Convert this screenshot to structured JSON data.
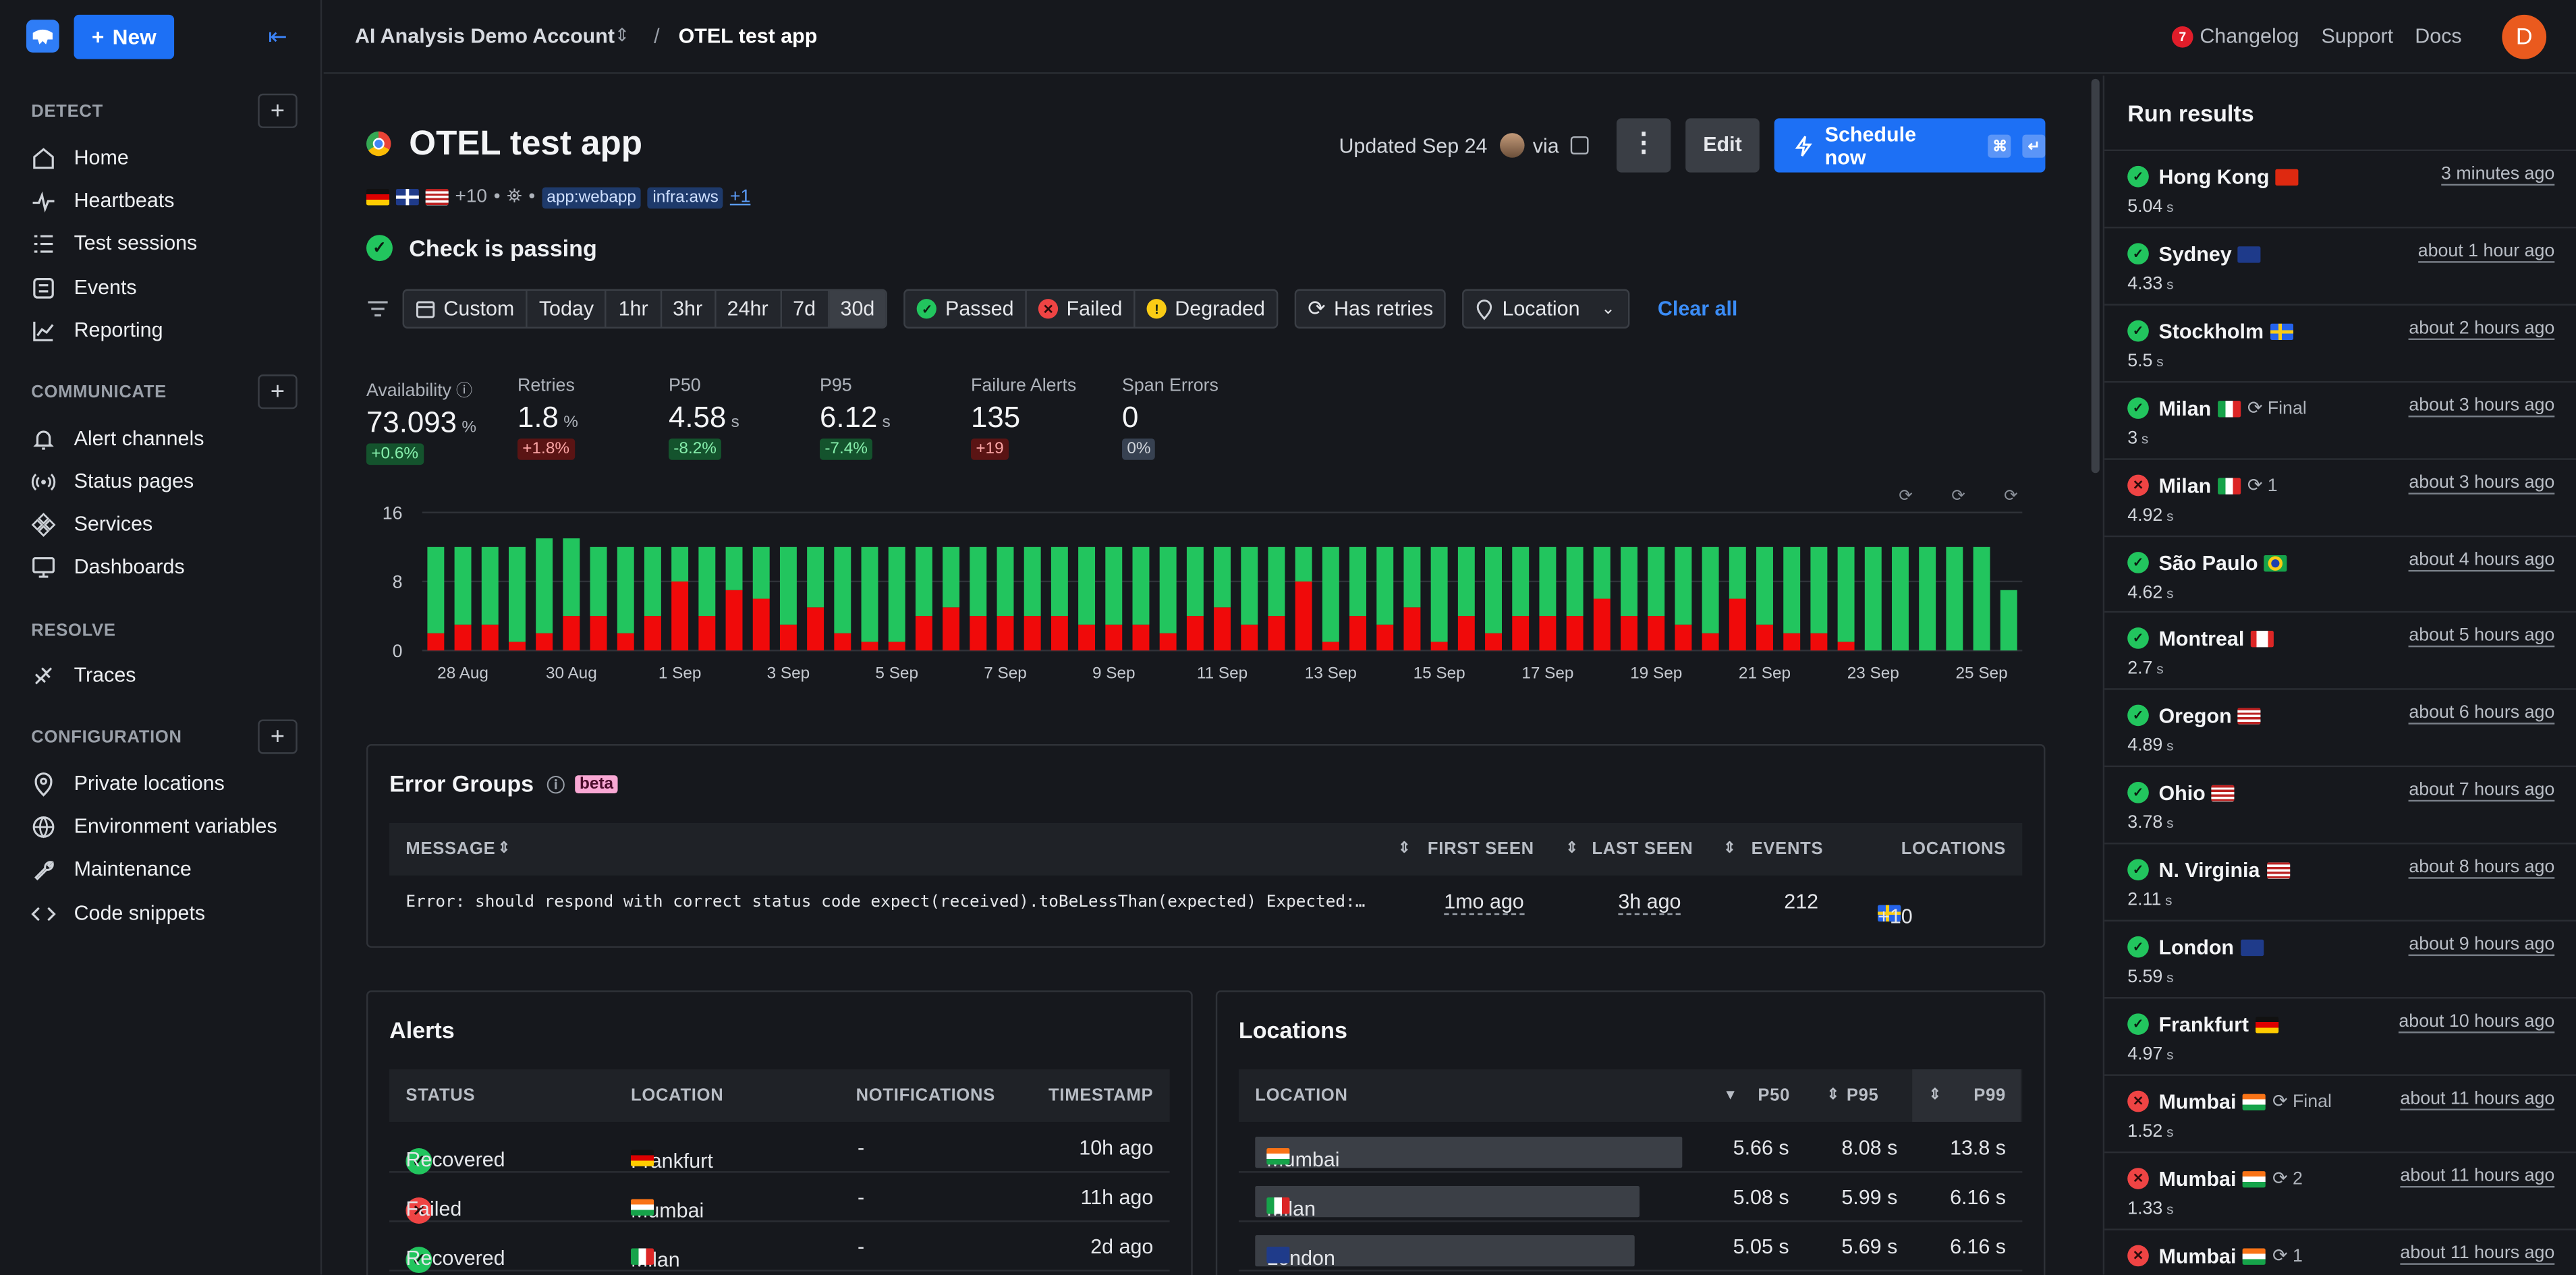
{
  "sidebar": {
    "new_label": "New",
    "sections": [
      {
        "title": "DETECT",
        "items": [
          "Home",
          "Heartbeats",
          "Test sessions",
          "Events",
          "Reporting"
        ]
      },
      {
        "title": "COMMUNICATE",
        "items": [
          "Alert channels",
          "Status pages",
          "Services",
          "Dashboards"
        ]
      },
      {
        "title": "RESOLVE",
        "items": [
          "Traces"
        ]
      },
      {
        "title": "CONFIGURATION",
        "items": [
          "Private locations",
          "Environment variables",
          "Maintenance",
          "Code snippets"
        ]
      }
    ]
  },
  "topbar": {
    "account": "AI Analysis Demo Account",
    "separator": "/",
    "page": "OTEL test app",
    "changelog_count": "7",
    "links": [
      "Changelog",
      "Support",
      "Docs"
    ],
    "avatar_initial": "D"
  },
  "check": {
    "title": "OTEL test app",
    "updated": "Updated Sep 24",
    "via": "via",
    "more_label": "⋮",
    "edit_label": "Edit",
    "schedule_label": "Schedule now",
    "kbd": [
      "⌘",
      "↵"
    ],
    "flags_more": "+10",
    "tags": [
      "app:webapp",
      "infra:aws"
    ],
    "tags_more": "+1",
    "status": "Check is passing"
  },
  "filters": {
    "ranges": [
      "Custom",
      "Today",
      "1hr",
      "3hr",
      "24hr",
      "7d",
      "30d"
    ],
    "active_range": "30d",
    "statuses": [
      "Passed",
      "Failed",
      "Degraded"
    ],
    "has_retries": "Has retries",
    "location": "Location",
    "clear_all": "Clear all"
  },
  "stats": [
    {
      "label": "Availability",
      "value": "73.093",
      "unit": "%",
      "delta": "+0.6%",
      "tone": "g"
    },
    {
      "label": "Retries",
      "value": "1.8",
      "unit": "%",
      "delta": "+1.8%",
      "tone": "r"
    },
    {
      "label": "P50",
      "value": "4.58",
      "unit": "s",
      "delta": "-8.2%",
      "tone": "g"
    },
    {
      "label": "P95",
      "value": "6.12",
      "unit": "s",
      "delta": "-7.4%",
      "tone": "g"
    },
    {
      "label": "Failure Alerts",
      "value": "135",
      "unit": "",
      "delta": "+19",
      "tone": "r"
    },
    {
      "label": "Span Errors",
      "value": "0",
      "unit": "",
      "delta": "0%",
      "tone": "n"
    }
  ],
  "chart_data": {
    "type": "bar",
    "stacked": true,
    "ylim": [
      0,
      16
    ],
    "y_ticks": [
      "16",
      "8",
      "0"
    ],
    "x_tick_labels": [
      "28 Aug",
      "30 Aug",
      "1 Sep",
      "3 Sep",
      "5 Sep",
      "7 Sep",
      "9 Sep",
      "11 Sep",
      "13 Sep",
      "15 Sep",
      "17 Sep",
      "19 Sep",
      "21 Sep",
      "23 Sep",
      "25 Sep"
    ],
    "colors": {
      "passed": "#22c55e",
      "failed": "#f00a0a"
    },
    "series": [
      {
        "name": "failed",
        "values": [
          2,
          3,
          3,
          1,
          2,
          4,
          4,
          2,
          4,
          8,
          4,
          7,
          6,
          3,
          5,
          2,
          1,
          1,
          4,
          5,
          4,
          4,
          4,
          4,
          3,
          3,
          3,
          2,
          4,
          5,
          3,
          4,
          8,
          1,
          4,
          3,
          5,
          1,
          4,
          2,
          4,
          4,
          4,
          6,
          4,
          4,
          3,
          2,
          6,
          3,
          2,
          2,
          1,
          0,
          0,
          0,
          0,
          0,
          0
        ]
      },
      {
        "name": "passed",
        "values": [
          10,
          9,
          9,
          11,
          11,
          9,
          8,
          10,
          8,
          4,
          8,
          5,
          6,
          9,
          7,
          10,
          11,
          11,
          8,
          7,
          8,
          8,
          8,
          8,
          9,
          9,
          9,
          10,
          8,
          7,
          9,
          8,
          4,
          11,
          8,
          9,
          7,
          11,
          8,
          10,
          8,
          8,
          8,
          6,
          8,
          8,
          9,
          10,
          6,
          9,
          10,
          10,
          11,
          12,
          12,
          12,
          12,
          12,
          7
        ]
      }
    ]
  },
  "error_groups": {
    "title": "Error Groups",
    "badge": "beta",
    "columns": [
      "MESSAGE",
      "FIRST SEEN",
      "LAST SEEN",
      "EVENTS",
      "LOCATIONS"
    ],
    "rows": [
      {
        "message": "Error: should respond with correct status code expect(received).toBeLessThan(expected) Expected:…",
        "first_seen": "1mo ago",
        "last_seen": "3h ago",
        "events": "212",
        "locations_more": "+10"
      }
    ]
  },
  "alerts": {
    "title": "Alerts",
    "columns": [
      "STATUS",
      "LOCATION",
      "NOTIFICATIONS",
      "TIMESTAMP"
    ],
    "rows": [
      {
        "status": "Recovered",
        "ok": true,
        "location": "Frankfurt",
        "notifications": "-",
        "timestamp": "10h ago"
      },
      {
        "status": "Failed",
        "ok": false,
        "location": "Mumbai",
        "notifications": "-",
        "timestamp": "11h ago"
      },
      {
        "status": "Recovered",
        "ok": true,
        "location": "Milan",
        "notifications": "-",
        "timestamp": "2d ago"
      }
    ]
  },
  "locations": {
    "title": "Locations",
    "columns": [
      "LOCATION",
      "P50",
      "P95",
      "P99"
    ],
    "rows": [
      {
        "name": "Mumbai",
        "p50": "5.66 s",
        "p95": "8.08 s",
        "p99": "13.8 s",
        "share": 1.0
      },
      {
        "name": "Milan",
        "p50": "5.08 s",
        "p95": "5.99 s",
        "p99": "6.16 s",
        "share": 0.9
      },
      {
        "name": "London",
        "p50": "5.05 s",
        "p95": "5.69 s",
        "p99": "6.16 s",
        "share": 0.89
      }
    ]
  },
  "run_results": {
    "title": "Run results",
    "runs": [
      {
        "location": "Hong Kong",
        "ok": true,
        "extra": "",
        "ago": "3 minutes ago",
        "dur": "5.04"
      },
      {
        "location": "Sydney",
        "ok": true,
        "extra": "",
        "ago": "about 1 hour ago",
        "dur": "4.33"
      },
      {
        "location": "Stockholm",
        "ok": true,
        "extra": "",
        "ago": "about 2 hours ago",
        "dur": "5.5"
      },
      {
        "location": "Milan",
        "ok": true,
        "extra": "Final",
        "ago": "about 3 hours ago",
        "dur": "3"
      },
      {
        "location": "Milan",
        "ok": false,
        "extra": "1",
        "ago": "about 3 hours ago",
        "dur": "4.92"
      },
      {
        "location": "São Paulo",
        "ok": true,
        "extra": "",
        "ago": "about 4 hours ago",
        "dur": "4.62"
      },
      {
        "location": "Montreal",
        "ok": true,
        "extra": "",
        "ago": "about 5 hours ago",
        "dur": "2.7"
      },
      {
        "location": "Oregon",
        "ok": true,
        "extra": "",
        "ago": "about 6 hours ago",
        "dur": "4.89"
      },
      {
        "location": "Ohio",
        "ok": true,
        "extra": "",
        "ago": "about 7 hours ago",
        "dur": "3.78"
      },
      {
        "location": "N. Virginia",
        "ok": true,
        "extra": "",
        "ago": "about 8 hours ago",
        "dur": "2.11"
      },
      {
        "location": "London",
        "ok": true,
        "extra": "",
        "ago": "about 9 hours ago",
        "dur": "5.59"
      },
      {
        "location": "Frankfurt",
        "ok": true,
        "extra": "",
        "ago": "about 10 hours ago",
        "dur": "4.97"
      },
      {
        "location": "Mumbai",
        "ok": false,
        "extra": "Final",
        "ago": "about 11 hours ago",
        "dur": "1.52"
      },
      {
        "location": "Mumbai",
        "ok": false,
        "extra": "2",
        "ago": "about 11 hours ago",
        "dur": "1.33"
      },
      {
        "location": "Mumbai",
        "ok": false,
        "extra": "1",
        "ago": "about 11 hours ago",
        "dur": ""
      }
    ],
    "unit": "s"
  }
}
